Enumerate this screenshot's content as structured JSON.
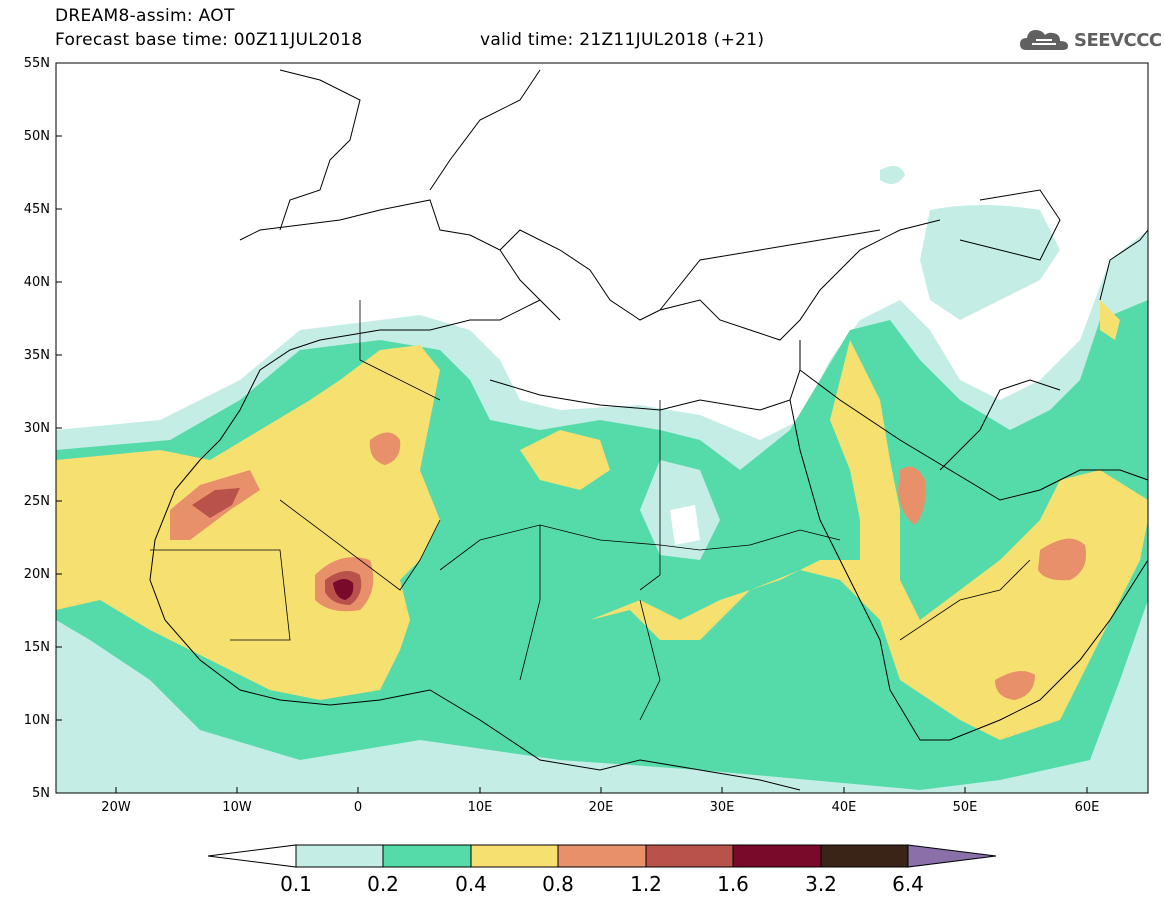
{
  "header": {
    "title_line1": "DREAM8-assim: AOT",
    "title_line2_left": "Forecast base time: 00Z11JUL2018",
    "title_line2_right": "valid time: 21Z11JUL2018 (+21)"
  },
  "logo": {
    "text": "SEEVCCC",
    "icon": "cloud-icon"
  },
  "map": {
    "lat_labels": [
      "55N",
      "50N",
      "45N",
      "40N",
      "35N",
      "30N",
      "25N",
      "20N",
      "15N",
      "10N",
      "5N"
    ],
    "lon_labels": [
      "20W",
      "10W",
      "0",
      "10E",
      "20E",
      "30E",
      "40E",
      "50E",
      "60E"
    ],
    "lon_range": [
      -25,
      65
    ],
    "lat_range": [
      5,
      55
    ]
  },
  "colorbar": {
    "labels": [
      "0.1",
      "0.2",
      "0.4",
      "0.8",
      "1.2",
      "1.6",
      "3.2",
      "6.4"
    ],
    "colors": [
      "#ffffff",
      "#c4ede6",
      "#55dbaa",
      "#f5e070",
      "#e8906a",
      "#b9524a",
      "#7a0a2a",
      "#3a2418",
      "#8a6fa8"
    ]
  },
  "colors": {
    "c01": "#c4ede6",
    "c02": "#55dbaa",
    "c04": "#f5e070",
    "c08": "#e8906a",
    "c12": "#b9524a",
    "c16": "#7a0a2a"
  }
}
